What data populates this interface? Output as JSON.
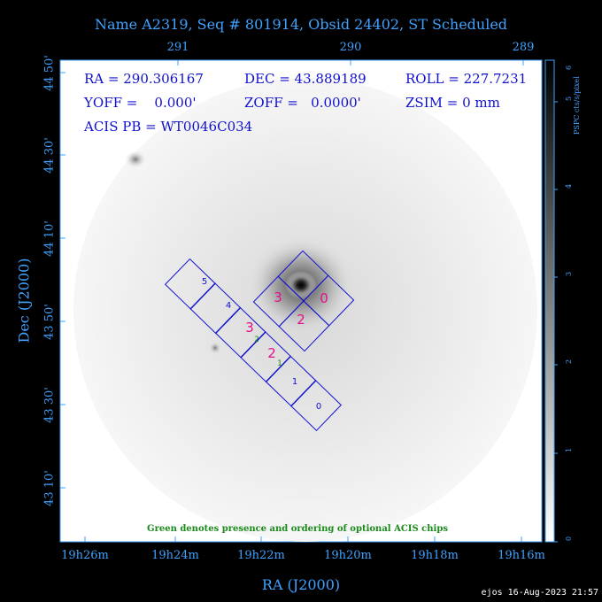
{
  "title": "Name A2319, Seq # 801914, Obsid 24402, ST Scheduled",
  "axes": {
    "top_ticks": [
      "291",
      "290",
      "289"
    ],
    "bottom_ticks": [
      "19h26m",
      "19h24m",
      "19h22m",
      "19h20m",
      "19h18m",
      "19h16m"
    ],
    "left_ticks": [
      "44 50'",
      "44 30'",
      "44 10'",
      "43 50'",
      "43 30'",
      "43 10'"
    ],
    "xlabel": "RA (J2000)",
    "ylabel": "Dec (J2000)"
  },
  "info": {
    "ra": "RA = 290.306167",
    "dec": "DEC = 43.889189",
    "roll": "ROLL = 227.7231",
    "yoff": "YOFF =    0.000'",
    "zoff": "ZOFF =   0.0000'",
    "zsim": "ZSIM = 0 mm",
    "acis_pb": "ACIS PB = WT0046C034"
  },
  "chips": {
    "acis_s": [
      {
        "label": "5",
        "color": "#1010d0"
      },
      {
        "label": "4",
        "color": "#1010d0"
      },
      {
        "label": "3",
        "color": "#e0108a",
        "optional_order": "2"
      },
      {
        "label": "2",
        "color": "#e0108a",
        "optional_order": "1"
      },
      {
        "label": "1",
        "color": "#1010d0"
      },
      {
        "label": "0",
        "color": "#1010d0"
      }
    ],
    "acis_i": [
      {
        "label": "3",
        "color": "#e0108a"
      },
      {
        "label": "0",
        "color": "#e0108a"
      },
      {
        "label": "2",
        "color": "#e0108a"
      }
    ]
  },
  "optional_color": "#1a8a1a",
  "note": "Green denotes presence and ordering of optional ACIS chips",
  "colorbar": {
    "label": "PSPC cts/s/pixel",
    "ticks": [
      "0",
      "1",
      "2",
      "3",
      "4",
      "5",
      "6"
    ]
  },
  "footer": "ejos 16-Aug-2023 21:57"
}
